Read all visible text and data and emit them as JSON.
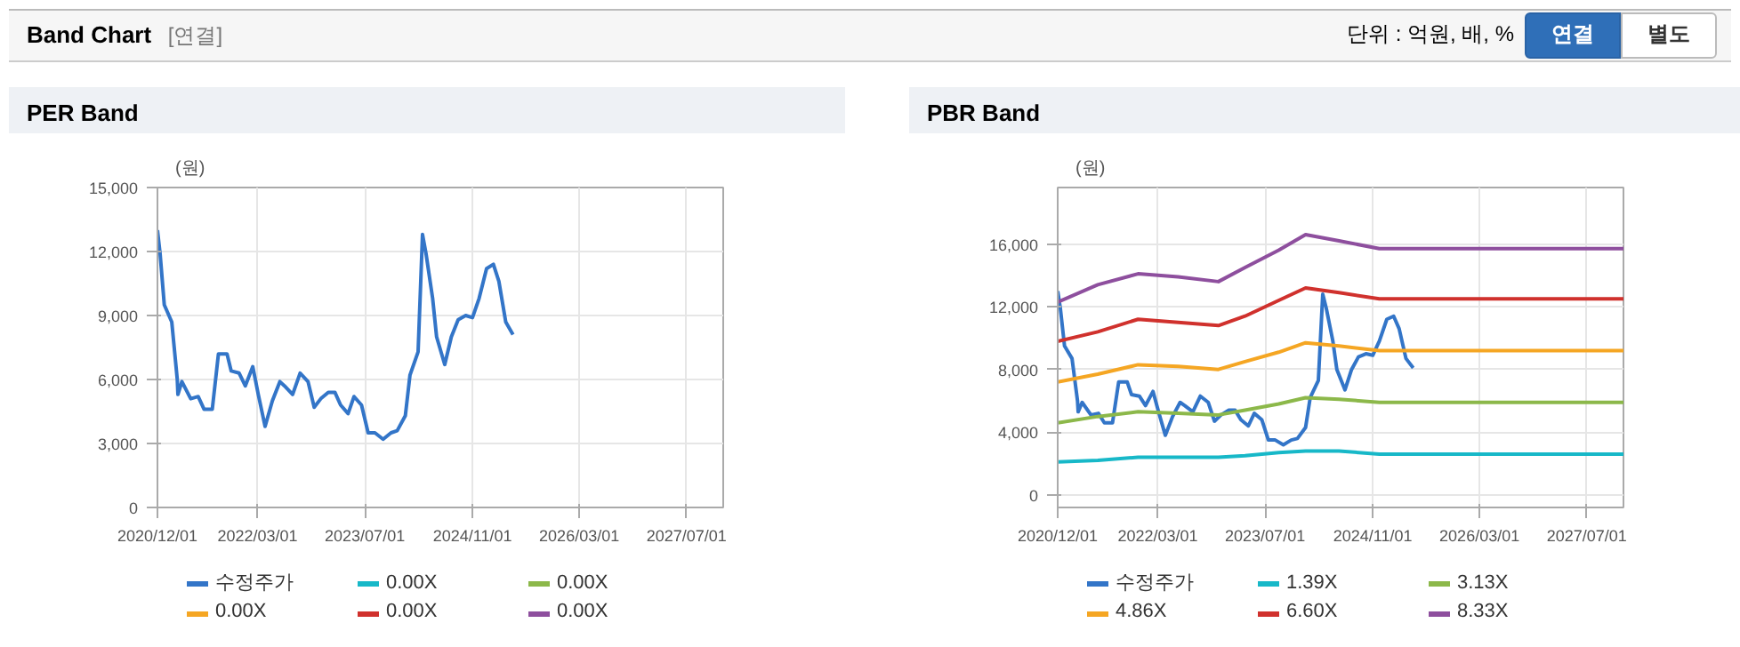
{
  "chart_data": [
    {
      "type": "other",
      "title": "Band Chart",
      "annotations": [
        "[연결]",
        "단위 : 억원, 배, %",
        "연결",
        "별도"
      ]
    },
    {
      "type": "line",
      "title": "PER Band",
      "ylabel": "(원)",
      "xlim": [
        "2020-12-01",
        "2027-12-15"
      ],
      "xticks": [
        {
          "value": "2020-12-01",
          "label": "2020/12/01"
        },
        {
          "value": "2022-03-01",
          "label": "2022/03/01"
        },
        {
          "value": "2023-07-01",
          "label": "2023/07/01"
        },
        {
          "value": "2024-11-01",
          "label": "2024/11/01"
        },
        {
          "value": "2026-03-01",
          "label": "2026/03/01"
        },
        {
          "value": "2027-07-01",
          "label": "2027/07/01"
        }
      ],
      "ylim": [
        0,
        15000
      ],
      "yticks": [
        {
          "value": 0,
          "label": "0"
        },
        {
          "value": 3000,
          "label": "3,000"
        },
        {
          "value": 6000,
          "label": "6,000"
        },
        {
          "value": 9000,
          "label": "9,000"
        },
        {
          "value": 12000,
          "label": "12,000"
        },
        {
          "value": 15000,
          "label": "15,000"
        }
      ],
      "grid": true,
      "legend": "bottom",
      "series": [
        {
          "name": "수정주가",
          "color": "#3375c8",
          "x": [
            "2020-12-01",
            "2020-12-13",
            "2021-01-01",
            "2021-02-04",
            "2021-03-01",
            "2021-03-04",
            "2021-03-22",
            "2021-05-01",
            "2021-06-04",
            "2021-07-01",
            "2021-08-07",
            "2021-09-04",
            "2021-10-13",
            "2021-11-01",
            "2021-12-07",
            "2022-01-04",
            "2022-02-07",
            "2022-03-04",
            "2022-04-04",
            "2022-05-07",
            "2022-06-10",
            "2022-07-01",
            "2022-08-07",
            "2022-09-10",
            "2022-10-16",
            "2022-11-13",
            "2022-12-13",
            "2023-01-16",
            "2023-02-15",
            "2023-03-13",
            "2023-04-16",
            "2023-05-13",
            "2023-06-16",
            "2023-07-16",
            "2023-08-16",
            "2023-09-22",
            "2023-10-28",
            "2023-11-25",
            "2024-01-01",
            "2024-01-22",
            "2024-02-28",
            "2024-03-19",
            "2024-04-04",
            "2024-05-04",
            "2024-05-22",
            "2024-06-28",
            "2024-07-28",
            "2024-08-28",
            "2024-10-01",
            "2024-11-01",
            "2024-12-01",
            "2025-01-04",
            "2025-02-04",
            "2025-03-01",
            "2025-04-01",
            "2025-05-04"
          ],
          "values": [
            13000,
            11900,
            9500,
            8700,
            6000,
            5300,
            5900,
            5100,
            5200,
            4600,
            4600,
            7200,
            7200,
            6400,
            6300,
            5700,
            6600,
            5300,
            3800,
            5000,
            5900,
            5700,
            5300,
            6300,
            5900,
            4700,
            5100,
            5400,
            5400,
            4800,
            4400,
            5200,
            4800,
            3500,
            3500,
            3200,
            3500,
            3600,
            4300,
            6200,
            7300,
            12800,
            11900,
            9800,
            8000,
            6700,
            8000,
            8800,
            9000,
            8900,
            9800,
            11200,
            11400,
            10600,
            8700,
            8100
          ]
        },
        {
          "name": "0.00X",
          "color": "#17b8c8"
        },
        {
          "name": "0.00X",
          "color": "#8cb84a"
        },
        {
          "name": "0.00X",
          "color": "#f5a623"
        },
        {
          "name": "0.00X",
          "color": "#d0312d"
        },
        {
          "name": "0.00X",
          "color": "#8e4f9e"
        }
      ]
    },
    {
      "type": "line",
      "title": "PBR Band",
      "ylabel": "(원)",
      "xlim": [
        "2020-12-01",
        "2027-12-15"
      ],
      "xticks": [
        {
          "value": "2020-12-01",
          "label": "2020/12/01"
        },
        {
          "value": "2022-03-01",
          "label": "2022/03/01"
        },
        {
          "value": "2023-07-01",
          "label": "2023/07/01"
        },
        {
          "value": "2024-11-01",
          "label": "2024/11/01"
        },
        {
          "value": "2026-03-01",
          "label": "2026/03/01"
        },
        {
          "value": "2027-07-01",
          "label": "2027/07/01"
        }
      ],
      "ylim": [
        -800,
        19600
      ],
      "yticks": [
        {
          "value": 0,
          "label": "0"
        },
        {
          "value": 4000,
          "label": "4,000"
        },
        {
          "value": 8000,
          "label": "8,000"
        },
        {
          "value": 12000,
          "label": "12,000"
        },
        {
          "value": 16000,
          "label": "16,000"
        }
      ],
      "grid": true,
      "legend": "bottom",
      "x": [
        "2020-12-01",
        "2021-06-01",
        "2021-12-01",
        "2022-06-01",
        "2022-12-01",
        "2023-04-01",
        "2023-09-01",
        "2024-01-01",
        "2024-06-01",
        "2024-12-01",
        "2027-12-15"
      ],
      "series": [
        {
          "name": "수정주가",
          "color": "#3375c8",
          "x": [
            "2020-12-01",
            "2020-12-13",
            "2021-01-01",
            "2021-02-04",
            "2021-03-01",
            "2021-03-04",
            "2021-03-22",
            "2021-05-01",
            "2021-06-04",
            "2021-07-01",
            "2021-08-07",
            "2021-09-04",
            "2021-10-13",
            "2021-11-01",
            "2021-12-07",
            "2022-01-04",
            "2022-02-07",
            "2022-03-04",
            "2022-04-04",
            "2022-05-07",
            "2022-06-10",
            "2022-07-01",
            "2022-08-07",
            "2022-09-10",
            "2022-10-16",
            "2022-11-13",
            "2022-12-13",
            "2023-01-16",
            "2023-02-15",
            "2023-03-13",
            "2023-04-16",
            "2023-05-13",
            "2023-06-16",
            "2023-07-16",
            "2023-08-16",
            "2023-09-22",
            "2023-10-28",
            "2023-11-25",
            "2024-01-01",
            "2024-01-22",
            "2024-02-28",
            "2024-03-19",
            "2024-04-04",
            "2024-05-04",
            "2024-05-22",
            "2024-06-28",
            "2024-07-28",
            "2024-08-28",
            "2024-10-01",
            "2024-11-01",
            "2024-12-01",
            "2025-01-04",
            "2025-02-04",
            "2025-03-01",
            "2025-04-01",
            "2025-05-04"
          ],
          "values": [
            13000,
            11900,
            9500,
            8700,
            6000,
            5300,
            5900,
            5100,
            5200,
            4600,
            4600,
            7200,
            7200,
            6400,
            6300,
            5700,
            6600,
            5300,
            3800,
            5000,
            5900,
            5700,
            5300,
            6300,
            5900,
            4700,
            5100,
            5400,
            5400,
            4800,
            4400,
            5200,
            4800,
            3500,
            3500,
            3200,
            3500,
            3600,
            4300,
            6200,
            7300,
            12800,
            11900,
            9800,
            8000,
            6700,
            8000,
            8800,
            9000,
            8900,
            9800,
            11200,
            11400,
            10600,
            8700,
            8100
          ]
        },
        {
          "name": "1.39X",
          "color": "#17b8c8",
          "values": [
            2100,
            2200,
            2400,
            2400,
            2400,
            2500,
            2700,
            2800,
            2800,
            2600,
            2600
          ]
        },
        {
          "name": "3.13X",
          "color": "#8cb84a",
          "values": [
            4600,
            5000,
            5300,
            5200,
            5100,
            5400,
            5800,
            6200,
            6100,
            5900,
            5900
          ]
        },
        {
          "name": "4.86X",
          "color": "#f5a623",
          "values": [
            7200,
            7700,
            8300,
            8200,
            8000,
            8500,
            9100,
            9700,
            9500,
            9200,
            9200
          ]
        },
        {
          "name": "6.60X",
          "color": "#d0312d",
          "values": [
            9800,
            10400,
            11200,
            11000,
            10800,
            11400,
            12400,
            13200,
            12900,
            12500,
            12500
          ]
        },
        {
          "name": "8.33X",
          "color": "#8e4f9e",
          "values": [
            12300,
            13400,
            14100,
            13900,
            13600,
            14500,
            15600,
            16600,
            16200,
            15700,
            15700
          ]
        }
      ]
    }
  ]
}
